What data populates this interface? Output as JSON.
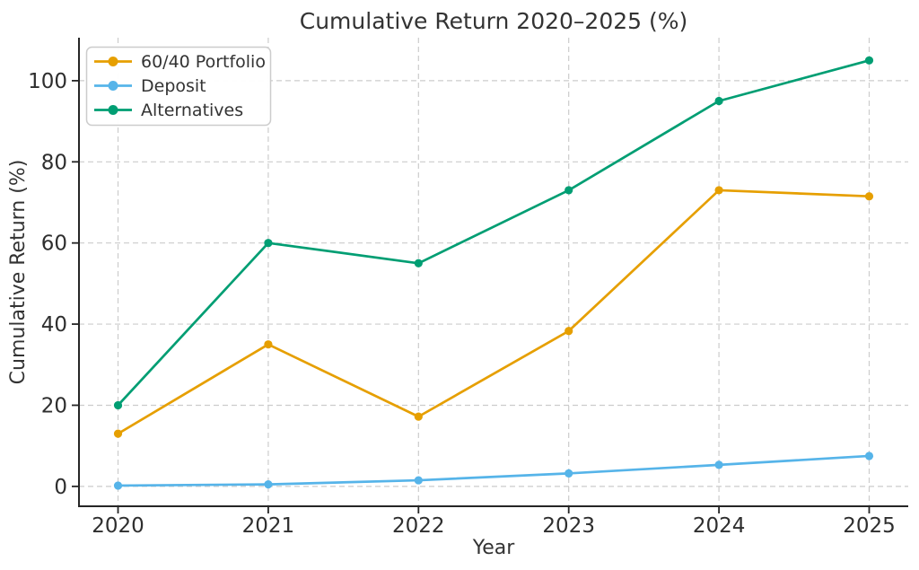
{
  "chart_data": {
    "type": "line",
    "title": "Cumulative Return 2020–2025 (%)",
    "xlabel": "Year",
    "ylabel": "Cumulative Return (%)",
    "categories": [
      2020,
      2021,
      2022,
      2023,
      2024,
      2025
    ],
    "series": [
      {
        "name": "60/40 Portfolio",
        "color": "#E69F00",
        "values": [
          13,
          35,
          17.2,
          38.3,
          73,
          71.5
        ]
      },
      {
        "name": "Deposit",
        "color": "#56B4E9",
        "values": [
          0.2,
          0.5,
          1.5,
          3.2,
          5.3,
          7.5
        ]
      },
      {
        "name": "Alternatives",
        "color": "#009E73",
        "values": [
          20,
          60,
          55,
          73,
          95,
          105
        ]
      }
    ],
    "yticks": [
      0,
      20,
      40,
      60,
      80,
      100
    ],
    "xlim": [
      2019.74,
      2025.26
    ],
    "ylim": [
      -4.9,
      110.6
    ],
    "grid": true,
    "grid_style": "dashed",
    "legend_position": "upper-left",
    "marker": "circle",
    "style": {
      "grid_color": "#cccccc",
      "spine_color": "#262626",
      "text_color": "#333333",
      "background": "#ffffff",
      "legend_border": "#cccccc"
    }
  }
}
